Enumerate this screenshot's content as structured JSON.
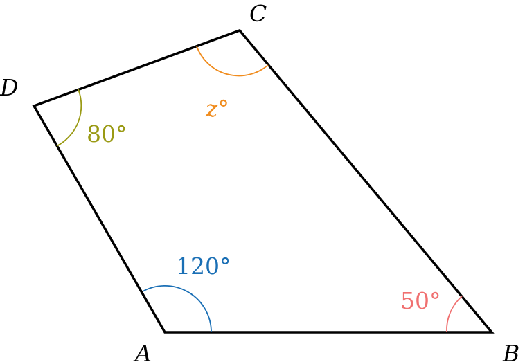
{
  "vertices": {
    "A": {
      "label": "A"
    },
    "B": {
      "label": "B"
    },
    "C": {
      "label": "C"
    },
    "D": {
      "label": "D"
    }
  },
  "angles": {
    "A": {
      "text": "120°",
      "color": "#1a6fb5"
    },
    "B": {
      "text": "50°",
      "color": "#f07070"
    },
    "C": {
      "text": "z°",
      "color": "#f08c1e"
    },
    "D": {
      "text": "80°",
      "color": "#9a9a14"
    }
  },
  "colors": {
    "edge": "#000000",
    "background": "#ffffff"
  }
}
